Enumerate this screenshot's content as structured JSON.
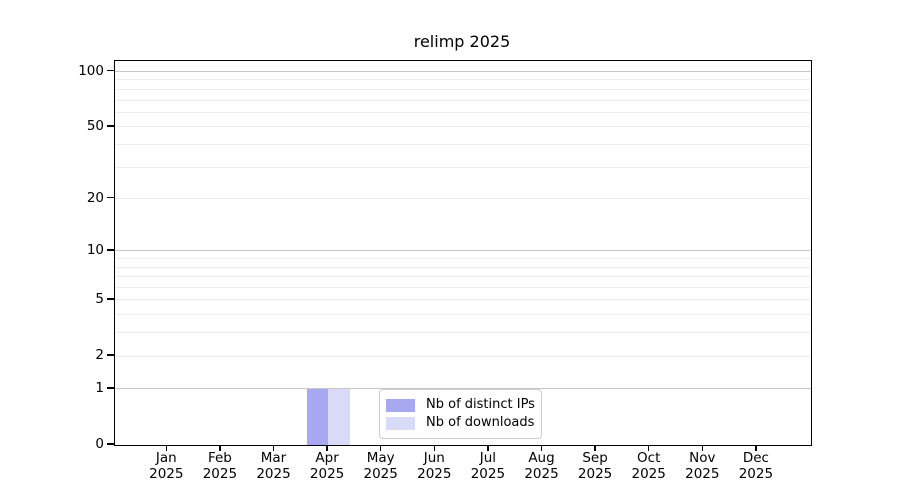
{
  "chart_data": {
    "type": "bar",
    "title": "relimp 2025",
    "categories": [
      "Jan",
      "Feb",
      "Mar",
      "Apr",
      "May",
      "Jun",
      "Jul",
      "Aug",
      "Sep",
      "Oct",
      "Nov",
      "Dec"
    ],
    "category_year": "2025",
    "series": [
      {
        "name": "Nb of distinct IPs",
        "color": "#a8a8f2",
        "values": [
          0,
          0,
          0,
          1,
          0,
          0,
          0,
          0,
          0,
          0,
          0,
          0
        ]
      },
      {
        "name": "Nb of downloads",
        "color": "#d9d9f8",
        "values": [
          0,
          0,
          0,
          1,
          0,
          0,
          0,
          0,
          0,
          0,
          0,
          0
        ]
      }
    ],
    "y_axis": {
      "scale": "log1p",
      "ticks": [
        0,
        1,
        2,
        5,
        10,
        20,
        50,
        100
      ],
      "major_gridlines": [
        1,
        10,
        100
      ],
      "minor_gridlines": [
        2,
        3,
        4,
        5,
        6,
        7,
        8,
        9,
        20,
        30,
        40,
        50,
        60,
        70,
        80,
        90
      ],
      "ylim": [
        0,
        113
      ]
    },
    "x_axis": {
      "tick_labels_line2": "2025"
    },
    "legend": {
      "position": "lower-center-inside",
      "entries": [
        "Nb of distinct IPs",
        "Nb of downloads"
      ]
    },
    "colors": {
      "background": "#ffffff",
      "spine": "#000000",
      "major_grid": "#c8c8c8",
      "minor_grid": "#ececec",
      "text": "#000000",
      "legend_border": "#cccccc"
    }
  }
}
